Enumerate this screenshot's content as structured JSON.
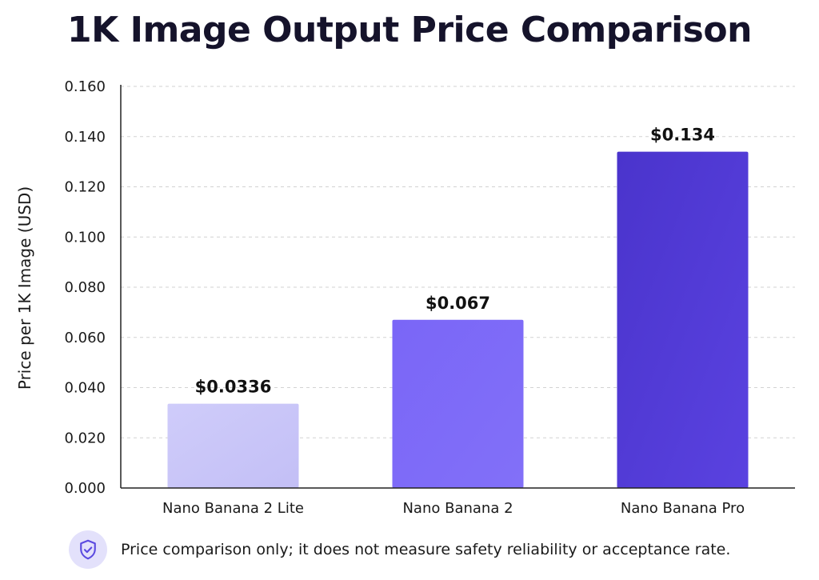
{
  "chart_data": {
    "type": "bar",
    "title": "1K Image Output Price Comparison",
    "xlabel": "",
    "ylabel": "Price per 1K Image (USD)",
    "categories": [
      "Nano Banana 2 Lite",
      "Nano Banana 2",
      "Nano Banana Pro"
    ],
    "values": [
      0.0336,
      0.067,
      0.134
    ],
    "value_labels": [
      "$0.0336",
      "$0.067",
      "$0.134"
    ],
    "bar_colors": [
      "#c9c6f8",
      "#7b66f6",
      "#4f38d4"
    ],
    "ylim": [
      0,
      0.16
    ],
    "yticks": [
      0.0,
      0.02,
      0.04,
      0.06,
      0.08,
      0.1,
      0.12,
      0.14,
      0.16
    ],
    "ytick_labels": [
      "0.000",
      "0.020",
      "0.040",
      "0.060",
      "0.080",
      "0.100",
      "0.120",
      "0.140",
      "0.160"
    ],
    "grid": true,
    "legend": "none"
  },
  "footnote": {
    "icon": "shield-check-icon",
    "text": "Price comparison only; it does not measure safety reliability or acceptance rate."
  }
}
